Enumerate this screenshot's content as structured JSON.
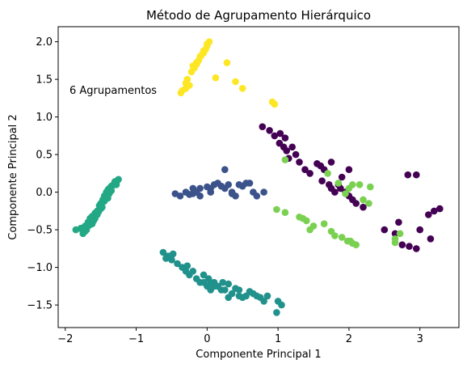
{
  "chart_data": {
    "type": "scatter",
    "title": "Método de Agrupamento Hierárquico",
    "xlabel": "Componente Principal 1",
    "ylabel": "Componente Principal 2",
    "xlim": [
      -2.1,
      3.55
    ],
    "ylim": [
      -1.8,
      2.2
    ],
    "xticks": [
      -2,
      -1,
      0,
      1,
      2,
      3
    ],
    "xtick_labels": [
      "−2",
      "−1",
      "0",
      "1",
      "2",
      "3"
    ],
    "yticks": [
      -1.5,
      -1.0,
      -0.5,
      0.0,
      0.5,
      1.0,
      1.5,
      2.0
    ],
    "ytick_labels": [
      "−1.5",
      "−1.0",
      "−0.5",
      "0.0",
      "0.5",
      "1.0",
      "1.5",
      "2.0"
    ],
    "grid": false,
    "legend": "none",
    "annotation": "6 Agrupamentos",
    "series": [
      {
        "color": "#440154",
        "points": [
          [
            0.78,
            0.87
          ],
          [
            0.88,
            0.82
          ],
          [
            0.95,
            0.75
          ],
          [
            1.03,
            0.78
          ],
          [
            1.1,
            0.72
          ],
          [
            1.02,
            0.65
          ],
          [
            1.08,
            0.6
          ],
          [
            1.12,
            0.55
          ],
          [
            1.15,
            0.45
          ],
          [
            1.2,
            0.6
          ],
          [
            1.25,
            0.5
          ],
          [
            1.3,
            0.4
          ],
          [
            1.38,
            0.3
          ],
          [
            1.45,
            0.25
          ],
          [
            1.55,
            0.38
          ],
          [
            1.6,
            0.35
          ],
          [
            1.65,
            0.3
          ],
          [
            1.62,
            0.15
          ],
          [
            1.72,
            0.1
          ],
          [
            1.75,
            0.05
          ],
          [
            1.8,
            0.0
          ],
          [
            1.85,
            0.1
          ],
          [
            1.88,
            0.05
          ],
          [
            1.95,
            0.0
          ],
          [
            2.0,
            -0.05
          ],
          [
            2.05,
            -0.1
          ],
          [
            1.75,
            0.4
          ],
          [
            2.0,
            0.3
          ],
          [
            1.9,
            0.2
          ],
          [
            2.1,
            -0.15
          ],
          [
            2.2,
            -0.2
          ],
          [
            2.5,
            -0.5
          ],
          [
            2.65,
            -0.55
          ],
          [
            2.7,
            -0.4
          ],
          [
            2.75,
            -0.7
          ],
          [
            2.85,
            -0.72
          ],
          [
            2.95,
            -0.75
          ],
          [
            3.0,
            -0.5
          ],
          [
            3.15,
            -0.62
          ],
          [
            3.2,
            -0.25
          ],
          [
            3.28,
            -0.22
          ],
          [
            3.12,
            -0.3
          ],
          [
            2.83,
            0.23
          ],
          [
            2.95,
            0.23
          ]
        ]
      },
      {
        "color": "#3b528b",
        "points": [
          [
            -0.45,
            -0.02
          ],
          [
            -0.38,
            -0.05
          ],
          [
            -0.3,
            0.0
          ],
          [
            -0.25,
            -0.03
          ],
          [
            -0.2,
            -0.02
          ],
          [
            -0.15,
            0.0
          ],
          [
            -0.1,
            0.05
          ],
          [
            0.0,
            0.07
          ],
          [
            0.05,
            0.05
          ],
          [
            0.1,
            0.1
          ],
          [
            0.15,
            0.12
          ],
          [
            0.2,
            0.08
          ],
          [
            0.25,
            0.05
          ],
          [
            0.3,
            0.1
          ],
          [
            0.35,
            0.0
          ],
          [
            0.4,
            -0.05
          ],
          [
            0.5,
            0.08
          ],
          [
            0.55,
            0.12
          ],
          [
            0.6,
            0.12
          ],
          [
            0.7,
            -0.05
          ],
          [
            0.8,
            0.0
          ],
          [
            0.65,
            0.0
          ],
          [
            0.25,
            0.3
          ],
          [
            -0.1,
            -0.05
          ],
          [
            0.45,
            0.1
          ],
          [
            -0.2,
            0.05
          ],
          [
            0.05,
            0.0
          ],
          [
            0.35,
            -0.02
          ]
        ]
      },
      {
        "color": "#21918c",
        "points": [
          [
            -0.62,
            -0.8
          ],
          [
            -0.55,
            -0.85
          ],
          [
            -0.5,
            -0.9
          ],
          [
            -0.48,
            -0.82
          ],
          [
            -0.42,
            -0.95
          ],
          [
            -0.35,
            -1.0
          ],
          [
            -0.3,
            -1.05
          ],
          [
            -0.25,
            -1.1
          ],
          [
            -0.2,
            -1.05
          ],
          [
            -0.15,
            -1.15
          ],
          [
            -0.1,
            -1.2
          ],
          [
            -0.05,
            -1.1
          ],
          [
            0.0,
            -1.25
          ],
          [
            0.05,
            -1.3
          ],
          [
            0.1,
            -1.2
          ],
          [
            0.15,
            -1.25
          ],
          [
            0.2,
            -1.3
          ],
          [
            0.25,
            -1.3
          ],
          [
            0.3,
            -1.22
          ],
          [
            0.35,
            -1.35
          ],
          [
            0.4,
            -1.28
          ],
          [
            0.45,
            -1.3
          ],
          [
            0.5,
            -1.4
          ],
          [
            0.55,
            -1.38
          ],
          [
            0.6,
            -1.32
          ],
          [
            0.65,
            -1.35
          ],
          [
            0.7,
            -1.38
          ],
          [
            0.75,
            -1.4
          ],
          [
            0.8,
            -1.45
          ],
          [
            0.85,
            -1.38
          ],
          [
            1.0,
            -1.45
          ],
          [
            1.05,
            -1.5
          ],
          [
            0.98,
            -1.6
          ],
          [
            0.05,
            -1.2
          ],
          [
            0.02,
            -1.15
          ],
          [
            -0.05,
            -1.2
          ],
          [
            0.3,
            -1.4
          ],
          [
            0.45,
            -1.38
          ],
          [
            -0.58,
            -0.88
          ],
          [
            -0.28,
            -0.98
          ],
          [
            0.1,
            -1.25
          ],
          [
            0.22,
            -1.2
          ]
        ]
      },
      {
        "color": "#22a884",
        "points": [
          [
            -1.85,
            -0.5
          ],
          [
            -1.78,
            -0.48
          ],
          [
            -1.72,
            -0.45
          ],
          [
            -1.68,
            -0.4
          ],
          [
            -1.65,
            -0.35
          ],
          [
            -1.62,
            -0.32
          ],
          [
            -1.58,
            -0.28
          ],
          [
            -1.55,
            -0.25
          ],
          [
            -1.52,
            -0.18
          ],
          [
            -1.5,
            -0.15
          ],
          [
            -1.47,
            -0.1
          ],
          [
            -1.45,
            -0.05
          ],
          [
            -1.42,
            0.0
          ],
          [
            -1.4,
            0.03
          ],
          [
            -1.38,
            0.05
          ],
          [
            -1.35,
            0.08
          ],
          [
            -1.32,
            0.1
          ],
          [
            -1.3,
            0.12
          ],
          [
            -1.27,
            0.15
          ],
          [
            -1.25,
            0.17
          ],
          [
            -1.75,
            -0.55
          ],
          [
            -1.7,
            -0.5
          ],
          [
            -1.6,
            -0.38
          ],
          [
            -1.55,
            -0.3
          ],
          [
            -1.48,
            -0.2
          ],
          [
            -1.4,
            -0.08
          ],
          [
            -1.35,
            0.02
          ],
          [
            -1.28,
            0.1
          ],
          [
            -1.62,
            -0.42
          ],
          [
            -1.45,
            -0.12
          ],
          [
            -1.58,
            -0.35
          ],
          [
            -1.5,
            -0.22
          ],
          [
            -1.42,
            -0.06
          ],
          [
            -1.36,
            0.06
          ],
          [
            -1.3,
            0.14
          ],
          [
            -1.72,
            -0.52
          ],
          [
            -1.66,
            -0.44
          ],
          [
            -1.76,
            -0.5
          ],
          [
            -1.53,
            -0.26
          ],
          [
            -1.44,
            -0.1
          ],
          [
            -1.38,
            -0.02
          ],
          [
            -1.33,
            0.09
          ]
        ]
      },
      {
        "color": "#7ad151",
        "points": [
          [
            1.1,
            0.43
          ],
          [
            0.98,
            -0.23
          ],
          [
            1.1,
            -0.27
          ],
          [
            1.3,
            -0.33
          ],
          [
            1.35,
            -0.35
          ],
          [
            1.4,
            -0.38
          ],
          [
            1.45,
            -0.5
          ],
          [
            1.5,
            -0.45
          ],
          [
            1.65,
            -0.42
          ],
          [
            1.75,
            -0.52
          ],
          [
            1.8,
            -0.58
          ],
          [
            1.9,
            -0.6
          ],
          [
            1.98,
            -0.65
          ],
          [
            2.05,
            -0.68
          ],
          [
            2.1,
            -0.7
          ],
          [
            2.0,
            0.05
          ],
          [
            2.05,
            0.1
          ],
          [
            2.15,
            0.1
          ],
          [
            2.2,
            -0.1
          ],
          [
            2.28,
            -0.15
          ],
          [
            1.85,
            0.12
          ],
          [
            2.3,
            0.07
          ],
          [
            2.65,
            -0.62
          ],
          [
            2.65,
            -0.67
          ],
          [
            2.72,
            -0.55
          ],
          [
            2.02,
            -0.65
          ],
          [
            1.95,
            -0.02
          ],
          [
            1.7,
            0.25
          ]
        ]
      },
      {
        "color": "#fde725",
        "points": [
          [
            -0.15,
            1.72
          ],
          [
            -0.1,
            1.8
          ],
          [
            -0.05,
            1.85
          ],
          [
            0.0,
            1.95
          ],
          [
            0.03,
            2.0
          ],
          [
            -0.02,
            1.9
          ],
          [
            -0.08,
            1.82
          ],
          [
            -0.12,
            1.75
          ],
          [
            -0.18,
            1.65
          ],
          [
            -0.2,
            1.68
          ],
          [
            -0.22,
            1.6
          ],
          [
            -0.25,
            1.42
          ],
          [
            -0.3,
            1.45
          ],
          [
            -0.35,
            1.35
          ],
          [
            -0.3,
            1.38
          ],
          [
            -0.28,
            1.5
          ],
          [
            -0.37,
            1.32
          ],
          [
            0.12,
            1.52
          ],
          [
            0.28,
            1.72
          ],
          [
            0.4,
            1.47
          ],
          [
            0.5,
            1.38
          ],
          [
            0.92,
            1.2
          ],
          [
            0.95,
            1.17
          ],
          [
            -0.15,
            1.7
          ],
          [
            -0.05,
            1.88
          ],
          [
            0.0,
            1.97
          ]
        ]
      }
    ]
  }
}
